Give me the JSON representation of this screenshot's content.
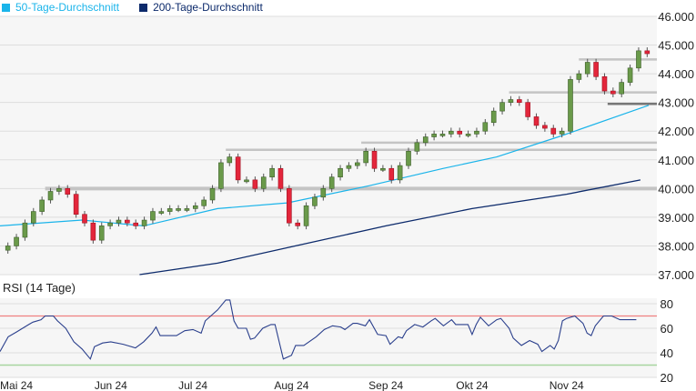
{
  "colors": {
    "ma50": "#1ab4ea",
    "ma200": "#0c2a6b",
    "up": "#6a9a4a",
    "down": "#e3263b",
    "rsi": "#2a3f8c",
    "overbought": "#f08080",
    "oversold": "#a8d4a0"
  },
  "chart_data": [
    {
      "type": "candlestick",
      "title": "",
      "legend": [
        {
          "name": "50-Tage-Durchschnitt",
          "color": "#1ab4ea"
        },
        {
          "name": "200-Tage-Durchschnitt",
          "color": "#0c2a6b"
        }
      ],
      "legend_placement": "top-left",
      "ylim": [
        37,
        46
      ],
      "yticks": [
        "46.000",
        "45.000",
        "44.000",
        "43.000",
        "42.000",
        "41.000",
        "40.000",
        "39.000",
        "38.000",
        "37.000"
      ],
      "ytick_values": [
        46,
        45,
        44,
        43,
        42,
        41,
        40,
        39,
        38,
        37
      ],
      "xticks": [
        "Mai 24",
        "Jun 24",
        "Jul 24",
        "Aug 24",
        "Sep 24",
        "Okt 24",
        "Nov 24"
      ],
      "xtick_days": [
        4,
        27,
        47,
        71,
        94,
        115,
        138
      ],
      "total_days": 160,
      "closes": [
        38.0,
        38.3,
        38.8,
        39.2,
        39.6,
        39.9,
        40.0,
        39.8,
        39.1,
        38.8,
        38.2,
        38.7,
        38.8,
        38.9,
        38.8,
        38.7,
        38.9,
        39.2,
        39.2,
        39.3,
        39.3,
        39.3,
        39.4,
        39.6,
        40.0,
        40.9,
        41.1,
        40.3,
        40.3,
        40.0,
        40.4,
        40.7,
        40.0,
        38.8,
        38.7,
        39.4,
        39.7,
        40.0,
        40.4,
        40.7,
        40.8,
        40.9,
        41.3,
        40.7,
        40.7,
        40.3,
        40.8,
        41.3,
        41.6,
        41.8,
        41.9,
        41.9,
        42.0,
        41.9,
        41.9,
        42.0,
        42.3,
        42.7,
        43.0,
        43.1,
        43.0,
        42.5,
        42.2,
        42.1,
        41.9,
        42.0,
        43.8,
        44.0,
        44.4,
        43.9,
        43.4,
        43.3,
        43.7,
        44.2,
        44.8,
        44.7
      ],
      "ma50": {
        "days": [
          0,
          20,
          35,
          53,
          70,
          90,
          108,
          121,
          136,
          158
        ],
        "values": [
          38.7,
          38.9,
          38.7,
          39.3,
          39.5,
          40.1,
          40.7,
          41.1,
          41.8,
          42.9
        ]
      },
      "ma200": {
        "days": [
          34,
          53,
          72,
          94,
          115,
          138,
          156
        ],
        "values": [
          37.0,
          37.4,
          38.0,
          38.7,
          39.3,
          39.8,
          40.3
        ]
      },
      "levels": [
        {
          "value": 40.0,
          "from_day": 11
        },
        {
          "value": 41.35,
          "from_day": 55
        },
        {
          "value": 41.6,
          "from_day": 88
        },
        {
          "value": 43.35,
          "from_day": 124
        },
        {
          "value": 44.5,
          "from_day": 141
        },
        {
          "value": 42.95,
          "from_day": 148
        }
      ]
    },
    {
      "type": "line",
      "title": "RSI (14 Tage)",
      "ylim": [
        20,
        85
      ],
      "yticks": [
        "80",
        "60",
        "40",
        "20"
      ],
      "ytick_values": [
        80,
        60,
        40,
        20
      ],
      "thresholds": [
        70,
        30
      ],
      "days": [
        0,
        2,
        4,
        7,
        8,
        10,
        11,
        13,
        14,
        16,
        18,
        20,
        22,
        23,
        25,
        27,
        30,
        33,
        35,
        37,
        38,
        39,
        43,
        45,
        47,
        49,
        50,
        53,
        55,
        56,
        57,
        58,
        60,
        61,
        62,
        64,
        66,
        67,
        69,
        71,
        72,
        74,
        77,
        79,
        81,
        83,
        84,
        86,
        87,
        89,
        90,
        92,
        94,
        95,
        97,
        98,
        99,
        101,
        103,
        105,
        106,
        108,
        110,
        111,
        114,
        115,
        116,
        117,
        119,
        121,
        122,
        124,
        125,
        127,
        129,
        131,
        132,
        134,
        135,
        136,
        137,
        138,
        140,
        142,
        143,
        144,
        145,
        147,
        149,
        151,
        153,
        154,
        155
      ],
      "values": [
        41,
        53,
        57,
        63,
        65,
        67,
        70,
        70,
        66,
        60,
        49,
        43,
        35,
        45,
        48,
        49,
        47,
        44,
        49,
        56,
        61,
        54,
        54,
        58,
        59,
        56,
        66,
        75,
        83,
        83,
        66,
        60,
        60,
        51,
        52,
        60,
        63,
        63,
        35,
        38,
        46,
        46,
        53,
        59,
        62,
        61,
        59,
        64,
        64,
        62,
        67,
        55,
        54,
        47,
        53,
        52,
        58,
        63,
        61,
        66,
        68,
        62,
        67,
        63,
        63,
        55,
        63,
        69,
        62,
        67,
        68,
        60,
        52,
        46,
        50,
        47,
        41,
        46,
        43,
        50,
        66,
        68,
        70,
        64,
        56,
        54,
        62,
        70,
        70,
        67,
        67,
        67,
        67
      ]
    }
  ]
}
